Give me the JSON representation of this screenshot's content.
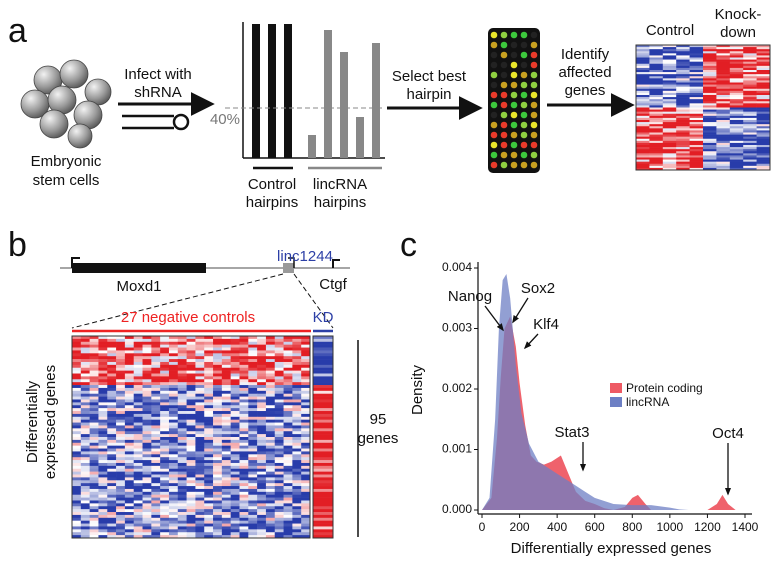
{
  "panel_a": {
    "letter": "a",
    "cells_label": [
      "Embryonic",
      "stem cells"
    ],
    "infect_label": [
      "Infect with",
      "shRNA"
    ],
    "threshold_label": "40%",
    "control_label": [
      "Control",
      "hairpins"
    ],
    "lincrna_label": [
      "lincRNA",
      "hairpins"
    ],
    "select_label": [
      "Select best",
      "hairpin"
    ],
    "identify_label": [
      "Identify",
      "affected",
      "genes"
    ],
    "control_column": "Control",
    "knockdown_column": [
      "Knock-",
      "down"
    ]
  },
  "panel_b": {
    "letter": "b",
    "genes": [
      "Moxd1",
      "linc1244",
      "Ctgf"
    ],
    "controls_label": "27 negative controls",
    "kd_label": "KD",
    "y_label": [
      "Differentially",
      "expressed genes"
    ],
    "count_label": [
      "95",
      "genes"
    ]
  },
  "panel_c": {
    "letter": "c",
    "type": "area",
    "x_label": "Differentially expressed genes",
    "y_label": "Density",
    "xlim": [
      0,
      1400
    ],
    "ylim": [
      0,
      0.004
    ],
    "xticks": [
      0,
      200,
      400,
      600,
      800,
      1000,
      1200,
      1400
    ],
    "yticks": [
      {
        "value": 0,
        "label": "0.000"
      },
      {
        "value": 0.001,
        "label": "0.001"
      },
      {
        "value": 0.002,
        "label": "0.002"
      },
      {
        "value": 0.003,
        "label": "0.003"
      },
      {
        "value": 0.004,
        "label": "0.004"
      }
    ],
    "series": [
      {
        "name": "Protein coding",
        "color": "#ee5a64",
        "x": [
          0,
          50,
          80,
          100,
          120,
          150,
          180,
          200,
          230,
          260,
          290,
          330,
          370,
          420,
          460,
          500,
          550,
          600,
          650,
          700,
          760,
          800,
          830,
          870,
          900,
          1000,
          1100,
          1200,
          1250,
          1280,
          1310,
          1350,
          1400
        ],
        "values": [
          0,
          0.0002,
          0.0012,
          0.0022,
          0.003,
          0.0032,
          0.0027,
          0.0021,
          0.0014,
          0.0009,
          0.0008,
          0.00075,
          0.0008,
          0.0009,
          0.0006,
          0.0003,
          0.00015,
          0.0001,
          3e-05,
          0,
          5e-05,
          0.0002,
          0.00025,
          0.0001,
          0,
          0,
          0,
          0,
          0.0001,
          0.00025,
          0.0001,
          0,
          0
        ]
      },
      {
        "name": "lincRNA",
        "color": "#6d7fc4",
        "x": [
          0,
          40,
          70,
          90,
          110,
          130,
          150,
          180,
          210,
          250,
          300,
          350,
          400,
          450,
          500,
          550,
          600,
          700,
          800,
          900,
          950,
          1000,
          1050,
          1100
        ],
        "values": [
          0,
          0.0002,
          0.0015,
          0.003,
          0.0038,
          0.0039,
          0.0035,
          0.0024,
          0.0016,
          0.0011,
          0.0008,
          0.0007,
          0.0006,
          0.0005,
          0.0004,
          0.0003,
          0.0002,
          0.0001,
          8e-05,
          8e-05,
          6e-05,
          4e-05,
          1e-05,
          0
        ]
      }
    ],
    "legend": "right",
    "annotations": [
      "Nanog",
      "Sox2",
      "Klf4",
      "Stat3",
      "Oct4"
    ]
  }
}
